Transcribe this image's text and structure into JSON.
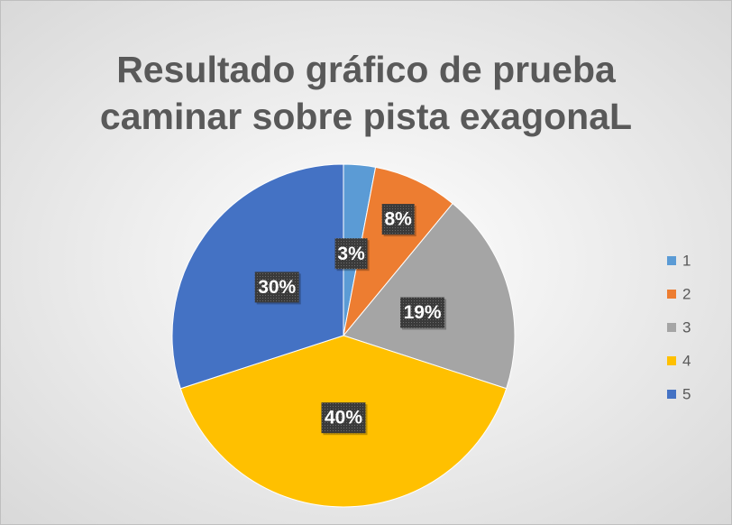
{
  "chart_data": {
    "type": "pie",
    "title": [
      "Resultado gráfico de  prueba",
      "caminar sobre pista exagonaL"
    ],
    "categories": [
      "1",
      "2",
      "3",
      "4",
      "5"
    ],
    "values": [
      3,
      8,
      19,
      40,
      30
    ],
    "value_labels": [
      "3%",
      "8%",
      "19%",
      "40%",
      "30%"
    ],
    "colors": [
      "#5B9BD5",
      "#ED7D31",
      "#A5A5A5",
      "#FFC000",
      "#4472C4"
    ],
    "legend": "right"
  }
}
